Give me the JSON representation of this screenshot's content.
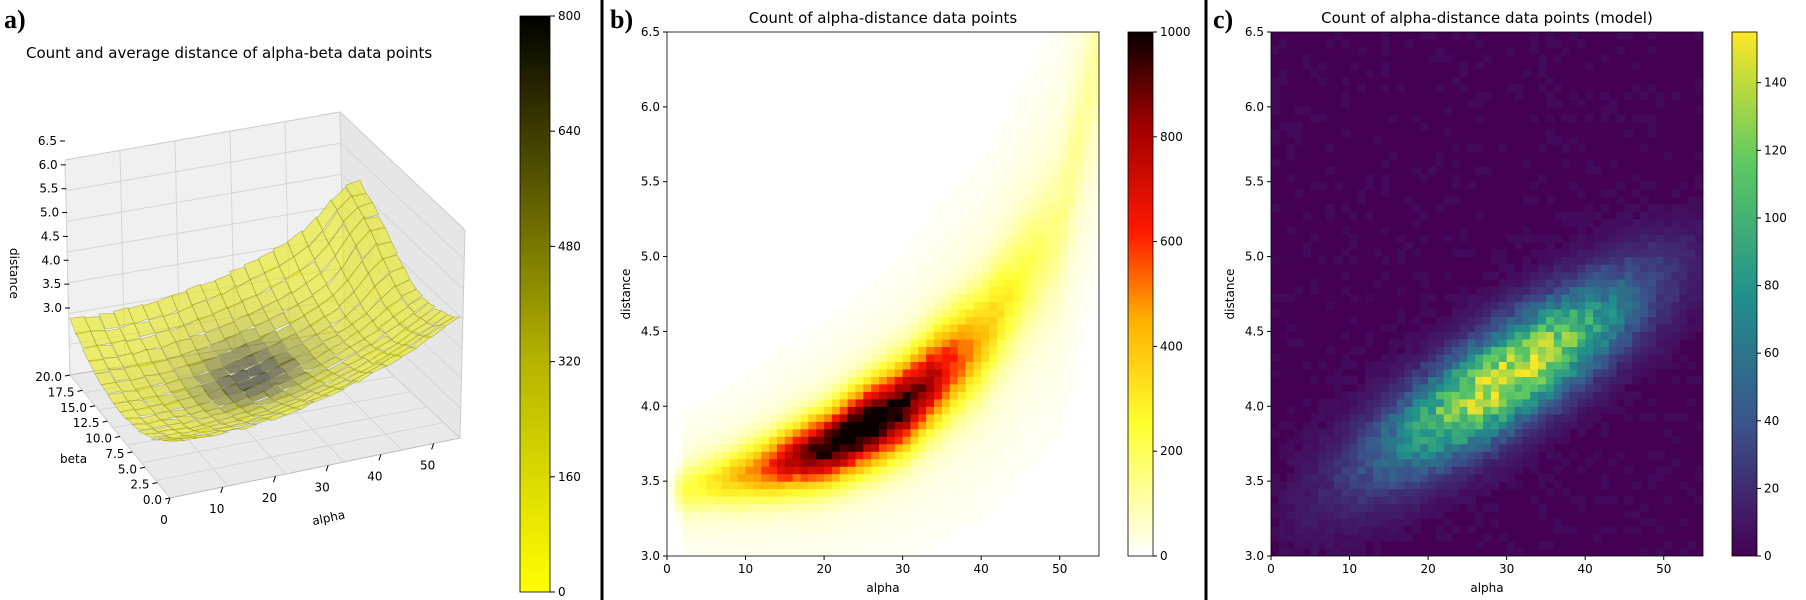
{
  "chart_data": [
    {
      "id": "a",
      "panel_label": "a)",
      "type": "surface3d",
      "title": "Count and average distance of alpha-beta data points",
      "xlabel": "alpha",
      "ylabel": "beta",
      "zlabel": "distance",
      "x_ticks": [
        "0",
        "10",
        "20",
        "30",
        "40",
        "50"
      ],
      "y_ticks": [
        "0.0",
        "2.5",
        "5.0",
        "7.5",
        "10.0",
        "12.5",
        "15.0",
        "17.5",
        "20.0"
      ],
      "z_ticks": [
        "3.0",
        "3.5",
        "4.0",
        "4.5",
        "5.0",
        "5.5",
        "6.0",
        "6.5"
      ],
      "xlim": [
        0,
        55
      ],
      "ylim": [
        0,
        20
      ],
      "zlim": [
        3.0,
        6.5
      ],
      "colorbar": {
        "min": 0,
        "max": 800,
        "ticks": [
          "0",
          "160",
          "320",
          "480",
          "640",
          "800"
        ],
        "colormap": "yellow-black"
      },
      "peak": {
        "alpha": 25,
        "beta": 10,
        "count": 800,
        "distance": 3.7
      }
    },
    {
      "id": "b",
      "panel_label": "b)",
      "type": "heatmap",
      "title": "Count of alpha-distance data points",
      "xlabel": "alpha",
      "ylabel": "distance",
      "x_ticks": [
        "0",
        "10",
        "20",
        "30",
        "40",
        "50"
      ],
      "y_ticks": [
        "3.0",
        "3.5",
        "4.0",
        "4.5",
        "5.0",
        "5.5",
        "6.0",
        "6.5"
      ],
      "xlim": [
        0,
        55
      ],
      "ylim": [
        3.0,
        6.5
      ],
      "colorbar": {
        "min": 0,
        "max": 1000,
        "ticks": [
          "0",
          "200",
          "400",
          "600",
          "800",
          "1000"
        ],
        "colormap": "hot_r"
      },
      "ridge": [
        [
          2,
          3.45
        ],
        [
          10,
          3.55
        ],
        [
          20,
          3.72
        ],
        [
          30,
          4.0
        ],
        [
          40,
          4.45
        ],
        [
          50,
          5.2
        ],
        [
          55,
          6.4
        ]
      ],
      "peak": {
        "alpha": 25,
        "distance": 3.85,
        "count": 1000
      }
    },
    {
      "id": "c",
      "panel_label": "c)",
      "type": "heatmap",
      "title": "Count of alpha-distance data points (model)",
      "xlabel": "alpha",
      "ylabel": "distance",
      "x_ticks": [
        "0",
        "10",
        "20",
        "30",
        "40",
        "50"
      ],
      "y_ticks": [
        "3.0",
        "3.5",
        "4.0",
        "4.5",
        "5.0",
        "5.5",
        "6.0",
        "6.5"
      ],
      "xlim": [
        0,
        55
      ],
      "ylim": [
        3.0,
        6.5
      ],
      "colorbar": {
        "min": 0,
        "max": 155,
        "ticks": [
          "0",
          "20",
          "40",
          "60",
          "80",
          "100",
          "120",
          "140"
        ],
        "colormap": "viridis"
      },
      "peak": {
        "alpha": 30,
        "distance": 4.2,
        "count": 150
      }
    }
  ]
}
